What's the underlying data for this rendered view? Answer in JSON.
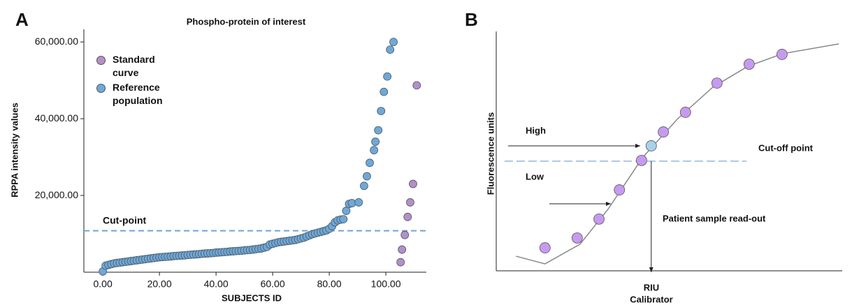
{
  "chart_data": [
    {
      "type": "scatter",
      "panel": "A",
      "title": "Phospho-protein of interest",
      "x_label": "SUBJECTS ID",
      "y_label": "RPPA intensity values",
      "xlim": [
        -6.7,
        114.3
      ],
      "ylim": [
        0,
        63300
      ],
      "xticks": [
        {
          "value": 0,
          "label": "0.00"
        },
        {
          "value": 20,
          "label": "20.00"
        },
        {
          "value": 40,
          "label": "40.00"
        },
        {
          "value": 60,
          "label": "60.00"
        },
        {
          "value": 80,
          "label": "80.00"
        },
        {
          "value": 100,
          "label": "100.00"
        }
      ],
      "yticks": [
        {
          "value": 20000,
          "label": "20,000.00"
        },
        {
          "value": 40000,
          "label": "40,000.00"
        },
        {
          "value": 60000,
          "label": "60,000.00"
        }
      ],
      "cut_point": 10800,
      "cut_label": "Cut-point",
      "cut_color": "#6fa3d8",
      "series": [
        {
          "name": "Standard curve",
          "color": "#b58fc7",
          "x": [
            105.2,
            105.7,
            106.7,
            107.7,
            108.6,
            109.6,
            110.9
          ],
          "values": [
            2600,
            5900,
            9700,
            14400,
            18200,
            23000,
            48700
          ]
        },
        {
          "name": "Reference population",
          "color": "#6fa8d6",
          "x": [
            0,
            1,
            2,
            3,
            4,
            5,
            6,
            7,
            8,
            9,
            10,
            11,
            12,
            13,
            14,
            15,
            16,
            17,
            18,
            19,
            20,
            21,
            22,
            23,
            24,
            25,
            26,
            27,
            28,
            29,
            30,
            31,
            32,
            33,
            34,
            35,
            36,
            37,
            38,
            39,
            40,
            41,
            42,
            43,
            44,
            45,
            46,
            47,
            48,
            49,
            50,
            51,
            52,
            53,
            54,
            55,
            56,
            57,
            58,
            59,
            60,
            61,
            62,
            63,
            64,
            65,
            66,
            67,
            68,
            69,
            70,
            71,
            72,
            73,
            74,
            75,
            76,
            77,
            78,
            79,
            80,
            81,
            82,
            83,
            84,
            85,
            86,
            87,
            88,
            90.4,
            92.3,
            93.3,
            94.3,
            95.8,
            96.3,
            97.3,
            98.3,
            99.3,
            100.5,
            101.5,
            102.7
          ],
          "values": [
            200,
            1700,
            1900,
            2100,
            2300,
            2400,
            2500,
            2600,
            2700,
            2800,
            2900,
            3000,
            3100,
            3200,
            3300,
            3400,
            3500,
            3600,
            3700,
            3800,
            3900,
            3950,
            4000,
            4050,
            4100,
            4200,
            4250,
            4300,
            4350,
            4400,
            4500,
            4550,
            4600,
            4650,
            4700,
            4800,
            4850,
            4900,
            4950,
            5000,
            5100,
            5150,
            5200,
            5250,
            5300,
            5400,
            5450,
            5500,
            5550,
            5600,
            5700,
            5750,
            5800,
            5900,
            6000,
            6100,
            6200,
            6400,
            6600,
            7200,
            7400,
            7600,
            7800,
            7900,
            8000,
            8100,
            8200,
            8300,
            8400,
            8600,
            8800,
            9000,
            9300,
            9600,
            9900,
            10100,
            10300,
            10500,
            10700,
            10900,
            11300,
            12000,
            13000,
            13500,
            13700,
            13800,
            16000,
            17800,
            18000,
            18200,
            22500,
            25000,
            28500,
            31800,
            34000,
            37000,
            42000,
            47000,
            51000,
            58000,
            60000
          ]
        }
      ]
    },
    {
      "type": "line",
      "panel": "B",
      "y_label": "Fluorescence units",
      "x_label": "RIU",
      "x_sublabel": "Calibrator",
      "annotations": [
        "High",
        "Low",
        "Cut-off point",
        "Patient sample read-out"
      ],
      "xlim": [
        0,
        100
      ],
      "ylim": [
        0,
        100
      ],
      "cutoff": 45.8,
      "cutoff_color": "#a9c8e8",
      "curve": {
        "color": "#888888",
        "x": [
          5.7,
          14.1,
          24.2,
          32.3,
          42.4,
          52.5,
          62.6,
          72.7,
          82.8,
          99
        ],
        "values": [
          6.1,
          2.9,
          11.1,
          25.7,
          47.5,
          63.6,
          76.7,
          85.4,
          90.7,
          94.8
        ]
      },
      "points": {
        "color": "#c79af0",
        "x": [
          14.1,
          23.4,
          29.7,
          35.6,
          42.0,
          48.3,
          54.7,
          63.8,
          73.1,
          82.6
        ],
        "values": [
          9.6,
          13.7,
          21.6,
          33.8,
          46.1,
          58.0,
          66.2,
          78.4,
          86.3,
          90.4
        ]
      },
      "patient": {
        "color": "#a9d1ea",
        "x": 44.8,
        "value": 52.2
      }
    }
  ]
}
